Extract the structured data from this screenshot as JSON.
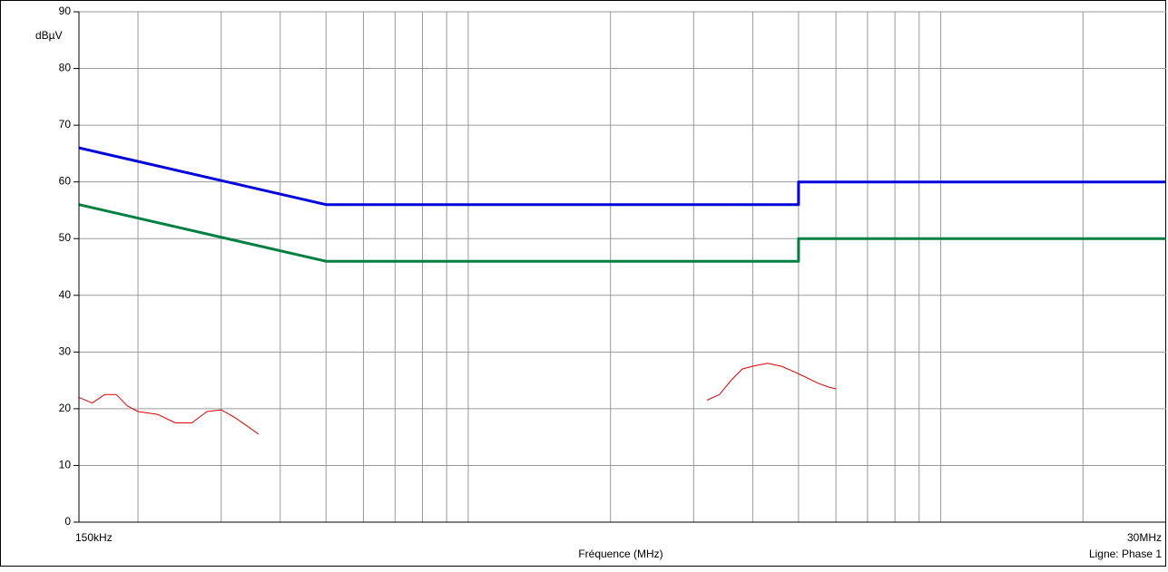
{
  "chart_data": {
    "type": "line",
    "title": "",
    "xlabel": "Fréquence (MHz)",
    "ylabel": "dBµV",
    "x_scale": "log",
    "xlim_mhz": [
      0.15,
      30
    ],
    "ylim": [
      0,
      90
    ],
    "yticks": [
      0,
      10,
      20,
      30,
      40,
      50,
      60,
      70,
      80,
      90
    ],
    "xtick_labels": {
      "start": "150kHz",
      "end": "30MHz"
    },
    "grid": true,
    "annotation": "Ligne: Phase 1",
    "series": [
      {
        "color": "#0000dd",
        "points": [
          [
            0.15,
            66
          ],
          [
            0.5,
            56
          ],
          [
            5,
            56
          ],
          [
            5,
            60
          ],
          [
            30,
            60
          ]
        ]
      },
      {
        "color": "#008040",
        "points": [
          [
            0.15,
            56
          ],
          [
            0.5,
            46
          ],
          [
            5,
            46
          ],
          [
            5,
            50
          ],
          [
            30,
            50
          ]
        ]
      },
      {
        "color": "#dd0000",
        "points": [
          [
            0.15,
            22
          ],
          [
            0.16,
            21
          ],
          [
            0.17,
            22.5
          ],
          [
            0.18,
            22.5
          ],
          [
            0.19,
            20.5
          ],
          [
            0.2,
            19.5
          ],
          [
            0.22,
            19
          ],
          [
            0.24,
            17.5
          ],
          [
            0.26,
            17.5
          ],
          [
            0.28,
            19.5
          ],
          [
            0.3,
            19.8
          ],
          [
            0.32,
            18.5
          ],
          [
            0.34,
            17
          ],
          [
            0.36,
            15.5
          ]
        ]
      },
      {
        "color": "#dd0000",
        "points": [
          [
            3.2,
            21.5
          ],
          [
            3.4,
            22.5
          ],
          [
            3.6,
            25
          ],
          [
            3.8,
            27
          ],
          [
            4.0,
            27.5
          ],
          [
            4.3,
            28
          ],
          [
            4.6,
            27.5
          ],
          [
            4.9,
            26.5
          ],
          [
            5.2,
            25.5
          ],
          [
            5.5,
            24.5
          ],
          [
            5.8,
            23.8
          ],
          [
            6.0,
            23.5
          ]
        ]
      }
    ]
  }
}
